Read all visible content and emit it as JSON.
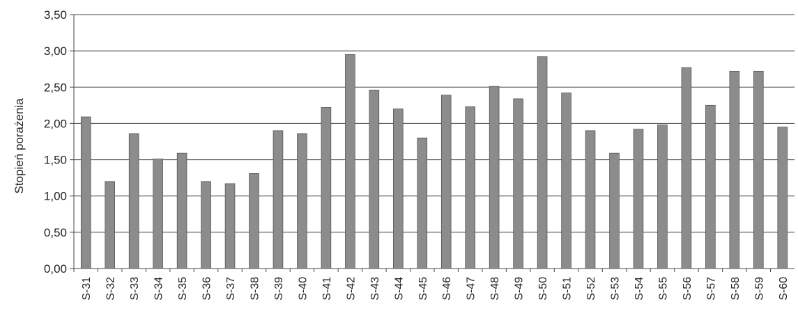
{
  "chart_data": {
    "type": "bar",
    "title": "",
    "xlabel": "",
    "ylabel": "Stopień porażenia",
    "ylim": [
      0,
      3.5
    ],
    "ytick_step": 0.5,
    "ytick_labels": [
      "0,00",
      "0,50",
      "1,00",
      "1,50",
      "2,00",
      "2,50",
      "3,00",
      "3,50"
    ],
    "grid": true,
    "legend": "none",
    "bar_color": "#8c8c8c",
    "categories": [
      "S-31",
      "S-32",
      "S-33",
      "S-34",
      "S-35",
      "S-36",
      "S-37",
      "S-38",
      "S-39",
      "S-40",
      "S-41",
      "S-42",
      "S-43",
      "S-44",
      "S-45",
      "S-46",
      "S-47",
      "S-48",
      "S-49",
      "S-50",
      "S-51",
      "S-52",
      "S-53",
      "S-54",
      "S-55",
      "S-56",
      "S-57",
      "S-58",
      "S-59",
      "S-60"
    ],
    "values": [
      2.09,
      1.2,
      1.86,
      1.51,
      1.59,
      1.2,
      1.17,
      1.31,
      1.9,
      1.86,
      2.22,
      2.95,
      2.46,
      2.2,
      1.8,
      2.39,
      2.23,
      2.51,
      2.34,
      2.92,
      2.42,
      1.9,
      1.59,
      1.92,
      1.98,
      2.77,
      2.25,
      2.72,
      2.72,
      1.95
    ]
  }
}
